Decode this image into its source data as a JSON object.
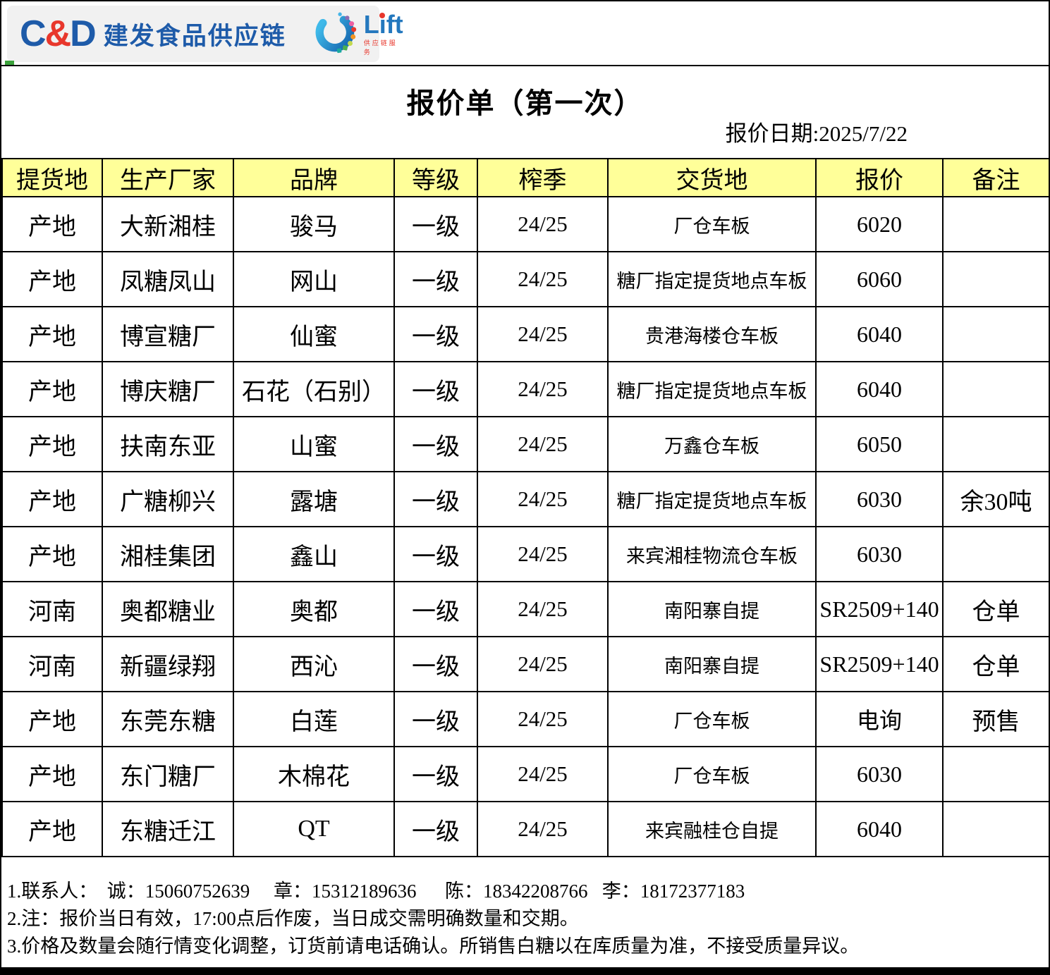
{
  "header": {
    "cd_logo": {
      "c": "C",
      "amp": "&",
      "d": "D"
    },
    "brand": "建发食品供应链",
    "lift": {
      "name": "Lift",
      "tagline": "供应链服务"
    }
  },
  "title_block": {
    "title": "报价单（第一次）",
    "date_line": "报价日期:2025/7/22"
  },
  "table": {
    "columns": [
      "提货地",
      "生产厂家",
      "品牌",
      "等级",
      "榨季",
      "交货地",
      "报价",
      "备注"
    ],
    "rows": [
      [
        "产地",
        "大新湘桂",
        "骏马",
        "一级",
        "24/25",
        "厂仓车板",
        "6020",
        ""
      ],
      [
        "产地",
        "凤糖凤山",
        "网山",
        "一级",
        "24/25",
        "糖厂指定提货地点车板",
        "6060",
        ""
      ],
      [
        "产地",
        "博宣糖厂",
        "仙蜜",
        "一级",
        "24/25",
        "贵港海楼仓车板",
        "6040",
        ""
      ],
      [
        "产地",
        "博庆糖厂",
        "石花（石别）",
        "一级",
        "24/25",
        "糖厂指定提货地点车板",
        "6040",
        ""
      ],
      [
        "产地",
        "扶南东亚",
        "山蜜",
        "一级",
        "24/25",
        "万鑫仓车板",
        "6050",
        ""
      ],
      [
        "产地",
        "广糖柳兴",
        "露塘",
        "一级",
        "24/25",
        "糖厂指定提货地点车板",
        "6030",
        "余30吨"
      ],
      [
        "产地",
        "湘桂集团",
        "鑫山",
        "一级",
        "24/25",
        "来宾湘桂物流仓车板",
        "6030",
        ""
      ],
      [
        "河南",
        "奥都糖业",
        "奥都",
        "一级",
        "24/25",
        "南阳寨自提",
        "SR2509+140",
        "仓单"
      ],
      [
        "河南",
        "新疆绿翔",
        "西沁",
        "一级",
        "24/25",
        "南阳寨自提",
        "SR2509+140",
        "仓单"
      ],
      [
        "产地",
        "东莞东糖",
        "白莲",
        "一级",
        "24/25",
        "厂仓车板",
        "电询",
        "预售"
      ],
      [
        "产地",
        "东门糖厂",
        "木棉花",
        "一级",
        "24/25",
        "厂仓车板",
        "6030",
        ""
      ],
      [
        "产地",
        "东糖迁江",
        "QT",
        "一级",
        "24/25",
        "来宾融桂仓自提",
        "6040",
        ""
      ]
    ]
  },
  "notes": [
    "1.联系人：  诚：15060752639     章：15312189636      陈：18342208766   李：18172377183",
    "2.注：报价当日有效，17:00点后作废，当日成交需明确数量和交期。",
    "3.价格及数量会随行情变化调整，订货前请电话确认。所销售白糖以在库质量为准，不接受质量异议。"
  ],
  "colors": {
    "header_bg": "#FFFF99",
    "brand_blue": "#1E5BA9",
    "accent_red": "#E8372C",
    "lift_blue": "#2478BE",
    "table_border": "#000000",
    "logo_band_bg": "#F1F1F1"
  }
}
